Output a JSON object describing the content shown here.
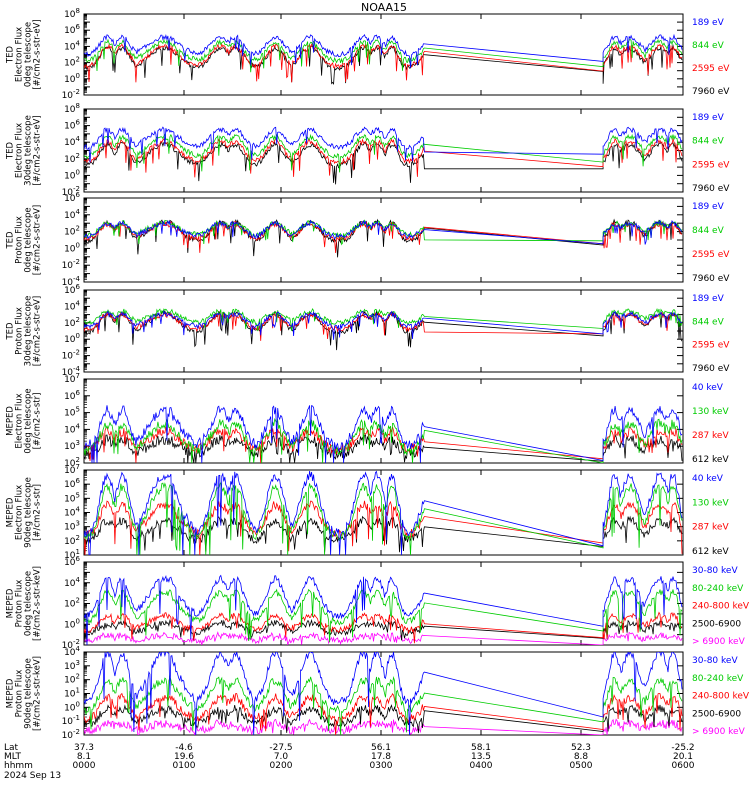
{
  "title": "NOAA15",
  "chart_data": {
    "type": "line",
    "x_ticks": [
      "0000",
      "0100",
      "0200",
      "0300",
      "0400",
      "0500",
      "0600"
    ],
    "footer": {
      "row_labels": [
        "Lat",
        "MLT",
        "hhmm",
        "2024 Sep 13"
      ],
      "lat": [
        "37.3",
        "-4.6",
        "-27.5",
        "56.1",
        "58.1",
        "52.3",
        "-25.2"
      ],
      "mlt": [
        "8.1",
        "19.6",
        "7.0",
        "17.8",
        "13.5",
        "8.8",
        "20.1"
      ],
      "hhmm": [
        "0000",
        "0100",
        "0200",
        "0300",
        "0400",
        "0500",
        "0600"
      ]
    },
    "gap": {
      "start": "0325",
      "end": "0512"
    },
    "panels": [
      {
        "ylabel": [
          "TED",
          "Electron Flux",
          "0deg telescope",
          "[#/cm2-s-str-eV]"
        ],
        "yticks": [
          "10^8",
          "10^6",
          "10^4",
          "10^2",
          "10^0",
          "10^-2"
        ],
        "ylim_exp": [
          -2,
          8
        ],
        "series": [
          {
            "name": "7960 eV",
            "color": "#000000",
            "level": 1.3,
            "swing": 1.4
          },
          {
            "name": "2595 eV",
            "color": "#ff0000",
            "level": 1.5,
            "swing": 1.4
          },
          {
            "name": "844 eV",
            "color": "#00cc00",
            "level": 2.2,
            "swing": 1.3
          },
          {
            "name": "189 eV",
            "color": "#0000ff",
            "level": 3.0,
            "swing": 1.2
          }
        ]
      },
      {
        "ylabel": [
          "TED",
          "Electron Flux",
          "30deg telescope",
          "[#/cm2-s-str-eV]"
        ],
        "yticks": [
          "10^8",
          "10^6",
          "10^4",
          "10^2",
          "10^0",
          "10^-2"
        ],
        "ylim_exp": [
          -2,
          8
        ],
        "series": [
          {
            "name": "7960 eV",
            "color": "#000000",
            "level": 1.2,
            "swing": 1.4
          },
          {
            "name": "2595 eV",
            "color": "#ff0000",
            "level": 1.6,
            "swing": 1.4
          },
          {
            "name": "844 eV",
            "color": "#00cc00",
            "level": 2.3,
            "swing": 1.3
          },
          {
            "name": "189 eV",
            "color": "#0000ff",
            "level": 3.4,
            "swing": 1.2
          }
        ]
      },
      {
        "ylabel": [
          "TED",
          "Proton Flux",
          "0deg telescope",
          "[#/cm2-s-str-eV]"
        ],
        "yticks": [
          "10^6",
          "10^4",
          "10^2",
          "10^0",
          "10^-2",
          "10^-4"
        ],
        "ylim_exp": [
          -4,
          6
        ],
        "series": [
          {
            "name": "7960 eV",
            "color": "#000000",
            "level": 0.8,
            "swing": 1.3
          },
          {
            "name": "2595 eV",
            "color": "#ff0000",
            "level": 1.1,
            "swing": 1.0
          },
          {
            "name": "844 eV",
            "color": "#00cc00",
            "level": 1.6,
            "swing": 0.8
          },
          {
            "name": "189 eV",
            "color": "#0000ff",
            "level": 1.4,
            "swing": 0.9
          }
        ]
      },
      {
        "ylabel": [
          "TED",
          "Proton Flux",
          "30deg telescope",
          "[#/cm2-s-str-eV]"
        ],
        "yticks": [
          "10^6",
          "10^4",
          "10^2",
          "10^0",
          "10^-2",
          "10^-4"
        ],
        "ylim_exp": [
          -4,
          6
        ],
        "series": [
          {
            "name": "7960 eV",
            "color": "#000000",
            "level": 0.8,
            "swing": 1.3
          },
          {
            "name": "2595 eV",
            "color": "#ff0000",
            "level": 1.2,
            "swing": 1.0
          },
          {
            "name": "844 eV",
            "color": "#00cc00",
            "level": 2.0,
            "swing": 0.8
          },
          {
            "name": "189 eV",
            "color": "#0000ff",
            "level": 1.5,
            "swing": 0.9
          }
        ]
      },
      {
        "ylabel": [
          "MEPED",
          "Electron Flux",
          "0deg telescope",
          "[#/cm2-s-str]"
        ],
        "yticks": [
          "10^7",
          "10^6",
          "10^5",
          "10^4",
          "10^3",
          "10^2"
        ],
        "ylim_exp": [
          2,
          7
        ],
        "series": [
          {
            "name": "612 keV",
            "color": "#000000",
            "level": 2.5,
            "swing": 0.5
          },
          {
            "name": "287 keV",
            "color": "#ff0000",
            "level": 2.8,
            "swing": 0.6
          },
          {
            "name": "130 keV",
            "color": "#00cc00",
            "level": 2.7,
            "swing": 0.9
          },
          {
            "name": "40 keV",
            "color": "#0000ff",
            "level": 3.0,
            "swing": 1.2
          }
        ]
      },
      {
        "ylabel": [
          "MEPED",
          "Electron Flux",
          "90deg telescope",
          "[#/cm2-s-str]"
        ],
        "yticks": [
          "10^7",
          "10^6",
          "10^5",
          "10^4",
          "10^3",
          "10^2",
          "10^1"
        ],
        "ylim_exp": [
          1,
          7
        ],
        "series": [
          {
            "name": "612 keV",
            "color": "#000000",
            "level": 2.0,
            "swing": 0.8
          },
          {
            "name": "287 keV",
            "color": "#ff0000",
            "level": 2.4,
            "swing": 1.2
          },
          {
            "name": "130 keV",
            "color": "#00cc00",
            "level": 2.2,
            "swing": 2.0
          },
          {
            "name": "40 keV",
            "color": "#0000ff",
            "level": 2.5,
            "swing": 2.3
          }
        ]
      },
      {
        "ylabel": [
          "MEPED",
          "Proton Flux",
          "0deg telescope",
          "[#/cm2-s-str-keV]"
        ],
        "yticks": [
          "10^6",
          "10^4",
          "10^2",
          "10^0",
          "10^-2"
        ],
        "ylim_exp": [
          -2,
          6
        ],
        "series": [
          {
            "name": "> 6900 keV",
            "color": "#ff00ff",
            "level": -1.6,
            "swing": 0.3
          },
          {
            "name": "2500-6900",
            "color": "#000000",
            "level": -0.8,
            "swing": 0.5
          },
          {
            "name": "240-800 keV",
            "color": "#ff0000",
            "level": -0.6,
            "swing": 0.8
          },
          {
            "name": "80-240 keV",
            "color": "#00cc00",
            "level": 0.2,
            "swing": 1.6
          },
          {
            "name": "30-80 keV",
            "color": "#0000ff",
            "level": 0.8,
            "swing": 2.0
          }
        ]
      },
      {
        "ylabel": [
          "MEPED",
          "Proton Flux",
          "90deg telescope",
          "[#/cm2-s-str-keV]"
        ],
        "yticks": [
          "10^4",
          "10^3",
          "10^2",
          "10^1",
          "10^0",
          "10^-1",
          "10^-2"
        ],
        "ylim_exp": [
          -2,
          4
        ],
        "series": [
          {
            "name": "> 6900 keV",
            "color": "#ff00ff",
            "level": -1.7,
            "swing": 0.3
          },
          {
            "name": "2500-6900",
            "color": "#000000",
            "level": -1.2,
            "swing": 0.6
          },
          {
            "name": "240-800 keV",
            "color": "#ff0000",
            "level": -0.9,
            "swing": 0.9
          },
          {
            "name": "80-240 keV",
            "color": "#00cc00",
            "level": -0.2,
            "swing": 1.2
          },
          {
            "name": "30-80 keV",
            "color": "#0000ff",
            "level": 0.3,
            "swing": 2.0
          }
        ]
      }
    ]
  }
}
